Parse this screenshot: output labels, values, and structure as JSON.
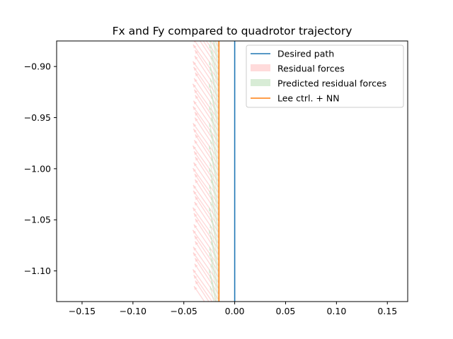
{
  "chart_data": {
    "type": "line",
    "title": "Fx and Fy compared to quadrotor trajectory",
    "xlabel": "",
    "ylabel": "",
    "xlim": [
      -0.175,
      0.17
    ],
    "ylim": [
      -1.13,
      -0.875
    ],
    "xticks": [
      -0.15,
      -0.1,
      -0.05,
      0.0,
      0.05,
      0.1,
      0.15
    ],
    "xtick_labels": [
      "−0.15",
      "−0.10",
      "−0.05",
      "0.00",
      "0.05",
      "0.10",
      "0.15"
    ],
    "yticks": [
      -0.9,
      -0.95,
      -1.0,
      -1.05,
      -1.1
    ],
    "ytick_labels": [
      "−0.90",
      "−0.95",
      "−1.00",
      "−1.05",
      "−1.10"
    ],
    "grid": false,
    "legend_position": "top-right",
    "series": [
      {
        "name": "Desired path",
        "kind": "line",
        "color": "#1f77b4",
        "x": [
          0.0,
          0.0
        ],
        "y": [
          -1.13,
          -0.875
        ]
      },
      {
        "name": "Residual forces",
        "kind": "arrows",
        "color": "#ffcccc",
        "start_x": -0.016,
        "tip_dx": -0.024,
        "tip_dy": 0.035,
        "y_start": -1.15,
        "y_end": -0.86,
        "y_step": 0.0055
      },
      {
        "name": "Predicted residual forces",
        "kind": "arrows",
        "color": "#c8e4c4",
        "start_x": -0.016,
        "tip_dx": -0.008,
        "tip_dy": 0.035,
        "y_start": -1.15,
        "y_end": -0.86,
        "y_step": 0.0055
      },
      {
        "name": "Lee ctrl. + NN",
        "kind": "line",
        "color": "#ff7f0e",
        "x": [
          -0.0155,
          -0.0155
        ],
        "y": [
          -1.13,
          -0.875
        ]
      }
    ]
  }
}
